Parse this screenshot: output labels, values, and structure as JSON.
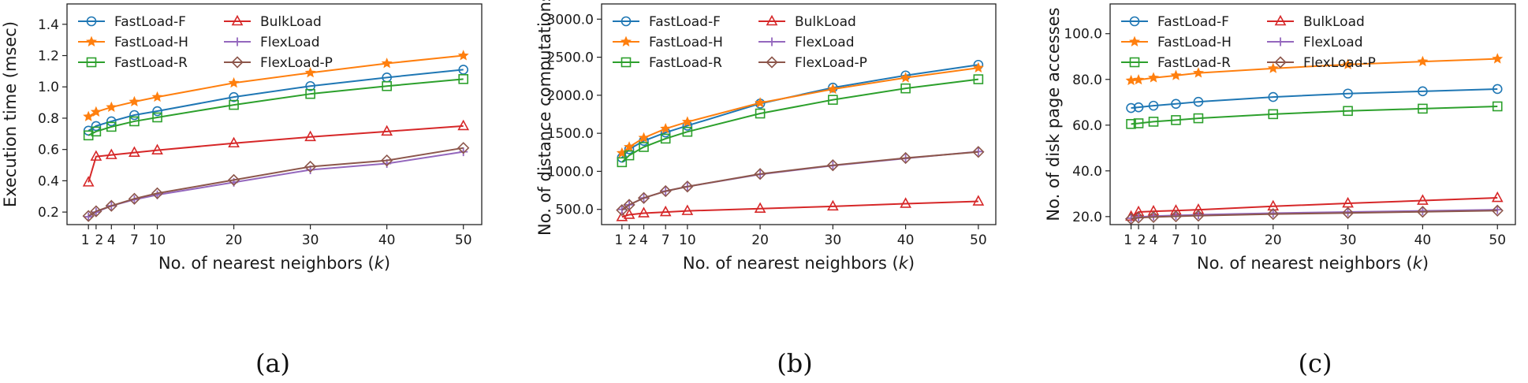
{
  "chart_data": [
    {
      "type": "line",
      "panel": "a",
      "caption": "(a)",
      "title": "",
      "xlabel": "No. of nearest neighbors (k)",
      "xlabel_prefix": "No. of nearest neighbors (",
      "xlabel_var": "k",
      "xlabel_suffix": ")",
      "ylabel": "Execution time (msec)",
      "x": [
        1,
        2,
        4,
        7,
        10,
        20,
        30,
        40,
        50
      ],
      "xticks": [
        1,
        2,
        4,
        7,
        10,
        20,
        30,
        40,
        50
      ],
      "xlim": [
        -1.8,
        52.4
      ],
      "yticks": [
        0.2,
        0.4,
        0.6,
        0.8,
        1.0,
        1.2,
        1.4
      ],
      "ytick_labels": [
        "0.2",
        "0.4",
        "0.6",
        "0.8",
        "1.0",
        "1.2",
        "1.4"
      ],
      "ylim": [
        0.12,
        1.53
      ],
      "legend": "upper-left, 2 columns",
      "series": [
        {
          "name": "FastLoad-F",
          "color": "#1f77b4",
          "marker": "circle",
          "values": [
            0.72,
            0.75,
            0.78,
            0.82,
            0.845,
            0.935,
            1.005,
            1.06,
            1.11
          ]
        },
        {
          "name": "FastLoad-H",
          "color": "#ff7f0e",
          "marker": "star",
          "values": [
            0.81,
            0.84,
            0.87,
            0.905,
            0.935,
            1.025,
            1.09,
            1.15,
            1.2
          ]
        },
        {
          "name": "FastLoad-R",
          "color": "#2ca02c",
          "marker": "square",
          "values": [
            0.69,
            0.715,
            0.745,
            0.78,
            0.805,
            0.885,
            0.955,
            1.005,
            1.05
          ]
        },
        {
          "name": "BulkLoad",
          "color": "#d62728",
          "marker": "triangle",
          "values": [
            0.39,
            0.555,
            0.565,
            0.58,
            0.595,
            0.64,
            0.68,
            0.715,
            0.75
          ]
        },
        {
          "name": "FlexLoad",
          "color": "#9467bd",
          "marker": "plus",
          "values": [
            0.17,
            0.2,
            0.24,
            0.28,
            0.31,
            0.39,
            0.47,
            0.51,
            0.585
          ]
        },
        {
          "name": "FlexLoad-P",
          "color": "#8c564b",
          "marker": "diamond",
          "values": [
            0.175,
            0.205,
            0.24,
            0.285,
            0.32,
            0.405,
            0.49,
            0.53,
            0.61
          ]
        }
      ]
    },
    {
      "type": "line",
      "panel": "b",
      "caption": "(b)",
      "title": "",
      "xlabel": "No. of nearest neighbors (k)",
      "xlabel_prefix": "No. of nearest neighbors (",
      "xlabel_var": "k",
      "xlabel_suffix": ")",
      "ylabel": "No. of distance computations",
      "x": [
        1,
        2,
        4,
        7,
        10,
        20,
        30,
        40,
        50
      ],
      "xticks": [
        1,
        2,
        4,
        7,
        10,
        20,
        30,
        40,
        50
      ],
      "xlim": [
        -1.8,
        52.4
      ],
      "yticks": [
        500,
        1000,
        1500,
        2000,
        2500,
        3000
      ],
      "ytick_labels": [
        "500.0",
        "1000.0",
        "1500.0",
        "2000.0",
        "2500.0",
        "3000.0"
      ],
      "ylim": [
        300,
        3200
      ],
      "legend": "upper-left, 2 columns",
      "series": [
        {
          "name": "FastLoad-F",
          "color": "#1f77b4",
          "marker": "circle",
          "values": [
            1180,
            1290,
            1400,
            1510,
            1600,
            1890,
            2100,
            2260,
            2400
          ]
        },
        {
          "name": "FastLoad-H",
          "color": "#ff7f0e",
          "marker": "star",
          "values": [
            1240,
            1320,
            1440,
            1560,
            1650,
            1900,
            2080,
            2230,
            2360
          ]
        },
        {
          "name": "FastLoad-R",
          "color": "#2ca02c",
          "marker": "square",
          "values": [
            1120,
            1210,
            1320,
            1430,
            1520,
            1760,
            1940,
            2090,
            2210
          ]
        },
        {
          "name": "BulkLoad",
          "color": "#d62728",
          "marker": "triangle",
          "values": [
            400,
            430,
            450,
            465,
            480,
            510,
            540,
            575,
            605
          ]
        },
        {
          "name": "FlexLoad",
          "color": "#9467bd",
          "marker": "plus",
          "values": [
            500,
            560,
            650,
            740,
            800,
            960,
            1075,
            1170,
            1260
          ]
        },
        {
          "name": "FlexLoad-P",
          "color": "#8c564b",
          "marker": "diamond",
          "values": [
            490,
            560,
            650,
            740,
            800,
            965,
            1080,
            1175,
            1255
          ]
        }
      ]
    },
    {
      "type": "line",
      "panel": "c",
      "caption": "(c)",
      "title": "",
      "xlabel": "No. of nearest neighbors (k)",
      "xlabel_prefix": "No. of nearest neighbors (",
      "xlabel_var": "k",
      "xlabel_suffix": ")",
      "ylabel": "No. of disk page accesses",
      "x": [
        1,
        2,
        4,
        7,
        10,
        20,
        30,
        40,
        50
      ],
      "xticks": [
        1,
        2,
        4,
        7,
        10,
        20,
        30,
        40,
        50
      ],
      "xlim": [
        -1.8,
        52.4
      ],
      "yticks": [
        20,
        40,
        60,
        80,
        100
      ],
      "ytick_labels": [
        "20.0",
        "40.0",
        "60.0",
        "80.0",
        "100.0"
      ],
      "ylim": [
        16.5,
        113
      ],
      "legend": "upper-left, 2 columns",
      "series": [
        {
          "name": "FastLoad-F",
          "color": "#1f77b4",
          "marker": "circle",
          "values": [
            67.5,
            67.8,
            68.5,
            69.3,
            70.2,
            72.3,
            73.8,
            74.8,
            75.8
          ]
        },
        {
          "name": "FastLoad-H",
          "color": "#ff7f0e",
          "marker": "star",
          "values": [
            79.5,
            79.8,
            80.7,
            81.7,
            82.8,
            84.8,
            86.5,
            87.8,
            89.0
          ]
        },
        {
          "name": "FastLoad-R",
          "color": "#2ca02c",
          "marker": "square",
          "values": [
            60.5,
            60.8,
            61.5,
            62.2,
            63.0,
            64.8,
            66.2,
            67.2,
            68.2
          ]
        },
        {
          "name": "BulkLoad",
          "color": "#d62728",
          "marker": "triangle",
          "values": [
            20.0,
            22.0,
            22.3,
            22.6,
            23.0,
            24.5,
            25.8,
            27.0,
            28.2
          ]
        },
        {
          "name": "FlexLoad",
          "color": "#9467bd",
          "marker": "plus",
          "values": [
            19.3,
            19.8,
            20.2,
            20.5,
            20.8,
            21.5,
            22.0,
            22.5,
            23.0
          ]
        },
        {
          "name": "FlexLoad-P",
          "color": "#8c564b",
          "marker": "diamond",
          "values": [
            19.0,
            19.5,
            19.8,
            20.1,
            20.4,
            21.1,
            21.6,
            22.1,
            22.6
          ]
        }
      ]
    }
  ]
}
